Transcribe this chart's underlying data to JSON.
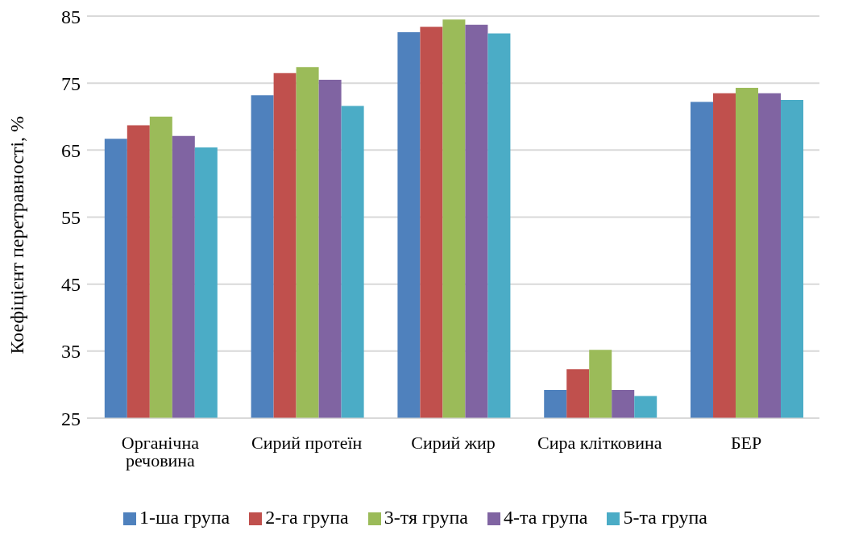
{
  "chart_data": {
    "type": "bar",
    "ylabel": "Коефіцієнт перетравності, %",
    "categories": [
      "Органічна речовина",
      "Сирий протеїн",
      "Сирий жир",
      "Сира клітковина",
      "БЕР"
    ],
    "series": [
      {
        "name": "1-ша група",
        "color": "#4f81bd",
        "values": [
          66.7,
          73.2,
          82.6,
          29.2,
          72.2
        ]
      },
      {
        "name": "2-га група",
        "color": "#c0504d",
        "values": [
          68.7,
          76.5,
          83.4,
          32.3,
          73.5
        ]
      },
      {
        "name": "3-тя група",
        "color": "#9bbb59",
        "values": [
          70,
          77.4,
          84.5,
          35.2,
          74.3
        ]
      },
      {
        "name": "4-та група",
        "color": "#8064a2",
        "values": [
          67.1,
          75.5,
          83.7,
          29.2,
          73.5
        ]
      },
      {
        "name": "5-та група",
        "color": "#4bacc6",
        "values": [
          65.4,
          71.6,
          82.4,
          28.3,
          72.5
        ]
      }
    ],
    "ylim": [
      25,
      85
    ],
    "yticks": [
      25,
      35,
      45,
      55,
      65,
      75,
      85
    ],
    "grid": "y",
    "legend": "bottom"
  }
}
